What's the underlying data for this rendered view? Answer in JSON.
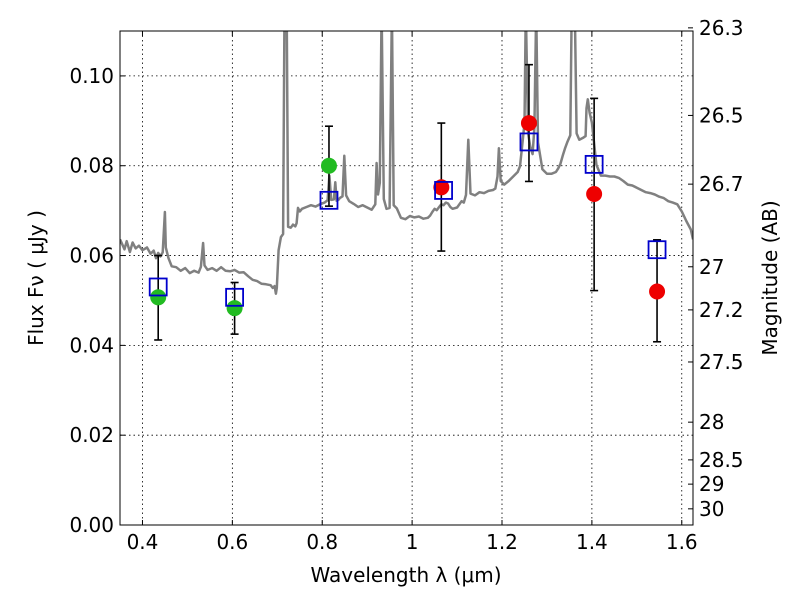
{
  "chart_data": {
    "type": "scatter",
    "title": "",
    "xlabel": "Wavelength  λ (μm)",
    "ylabel": "Flux  Fν  ( μJy )",
    "ylabel_right": "Magnitude (AB)",
    "xlim": [
      0.35,
      1.625
    ],
    "ylim": [
      0.0,
      0.11
    ],
    "grid": true,
    "x_ticks": [
      0.4,
      0.6,
      0.8,
      1.0,
      1.2,
      1.4,
      1.6
    ],
    "x_tick_labels": [
      "0.4",
      "0.6",
      "0.8",
      "1",
      "1.2",
      "1.4",
      "1.6"
    ],
    "y_ticks": [
      0.0,
      0.02,
      0.04,
      0.06,
      0.08,
      0.1
    ],
    "y_tick_labels": [
      "0.00",
      "0.02",
      "0.04",
      "0.06",
      "0.08",
      "0.10"
    ],
    "right_ticks": [
      {
        "label": "26.3",
        "flux": 0.1107
      },
      {
        "label": "26.5",
        "flux": 0.0912
      },
      {
        "label": "26.7",
        "flux": 0.0759
      },
      {
        "label": "27",
        "flux": 0.0575
      },
      {
        "label": "27.2",
        "flux": 0.0479
      },
      {
        "label": "27.5",
        "flux": 0.0363
      },
      {
        "label": "28",
        "flux": 0.0229
      },
      {
        "label": "28.5",
        "flux": 0.0145
      },
      {
        "label": "29",
        "flux": 0.0091
      },
      {
        "label": "30",
        "flux": 0.0036
      }
    ],
    "colors": {
      "model": "#808080",
      "green": "#22bb22",
      "red": "#ee0000",
      "model_box": "#0000cc",
      "error": "#000000"
    },
    "series": [
      {
        "type": "line",
        "points": [
          [
            0.35,
            0.0636
          ],
          [
            0.36,
            0.0614
          ],
          [
            0.365,
            0.0632
          ],
          [
            0.372,
            0.0608
          ],
          [
            0.378,
            0.0629
          ],
          [
            0.385,
            0.0616
          ],
          [
            0.392,
            0.0622
          ],
          [
            0.4,
            0.0612
          ],
          [
            0.41,
            0.0618
          ],
          [
            0.418,
            0.0604
          ],
          [
            0.425,
            0.0611
          ],
          [
            0.43,
            0.0594
          ],
          [
            0.435,
            0.0606
          ],
          [
            0.44,
            0.0598
          ],
          [
            0.445,
            0.0607
          ],
          [
            0.45,
            0.0697
          ],
          [
            0.452,
            0.0618
          ],
          [
            0.458,
            0.0594
          ],
          [
            0.465,
            0.0576
          ],
          [
            0.475,
            0.0574
          ],
          [
            0.485,
            0.0566
          ],
          [
            0.495,
            0.0572
          ],
          [
            0.505,
            0.0561
          ],
          [
            0.515,
            0.0566
          ],
          [
            0.525,
            0.0562
          ],
          [
            0.53,
            0.0575
          ],
          [
            0.535,
            0.0628
          ],
          [
            0.538,
            0.0578
          ],
          [
            0.545,
            0.0568
          ],
          [
            0.555,
            0.0572
          ],
          [
            0.565,
            0.0566
          ],
          [
            0.575,
            0.0574
          ],
          [
            0.585,
            0.0566
          ],
          [
            0.595,
            0.0565
          ],
          [
            0.605,
            0.0568
          ],
          [
            0.615,
            0.0562
          ],
          [
            0.625,
            0.0563
          ],
          [
            0.635,
            0.0554
          ],
          [
            0.645,
            0.0546
          ],
          [
            0.655,
            0.0543
          ],
          [
            0.665,
            0.0537
          ],
          [
            0.675,
            0.0536
          ],
          [
            0.685,
            0.0534
          ],
          [
            0.69,
            0.0528
          ],
          [
            0.694,
            0.0532
          ],
          [
            0.697,
            0.0515
          ],
          [
            0.699,
            0.0528
          ],
          [
            0.703,
            0.0612
          ],
          [
            0.708,
            0.0641
          ],
          [
            0.713,
            0.0648
          ],
          [
            0.716,
            0.115
          ],
          [
            0.721,
            0.115
          ],
          [
            0.724,
            0.0664
          ],
          [
            0.73,
            0.0662
          ],
          [
            0.735,
            0.0669
          ],
          [
            0.74,
            0.0665
          ],
          [
            0.743,
            0.0672
          ],
          [
            0.746,
            0.0706
          ],
          [
            0.75,
            0.0698
          ],
          [
            0.755,
            0.0704
          ],
          [
            0.765,
            0.0708
          ],
          [
            0.775,
            0.0712
          ],
          [
            0.785,
            0.0709
          ],
          [
            0.795,
            0.0714
          ],
          [
            0.805,
            0.0718
          ],
          [
            0.812,
            0.0723
          ],
          [
            0.816,
            0.0778
          ],
          [
            0.82,
            0.0724
          ],
          [
            0.826,
            0.0725
          ],
          [
            0.829,
            0.0763
          ],
          [
            0.832,
            0.0722
          ],
          [
            0.836,
            0.0724
          ],
          [
            0.839,
            0.0728
          ],
          [
            0.845,
            0.0732
          ],
          [
            0.849,
            0.0822
          ],
          [
            0.853,
            0.0734
          ],
          [
            0.86,
            0.0721
          ],
          [
            0.87,
            0.0715
          ],
          [
            0.88,
            0.0708
          ],
          [
            0.89,
            0.0712
          ],
          [
            0.9,
            0.0707
          ],
          [
            0.91,
            0.0702
          ],
          [
            0.918,
            0.0714
          ],
          [
            0.921,
            0.0806
          ],
          [
            0.924,
            0.0736
          ],
          [
            0.928,
            0.0762
          ],
          [
            0.932,
            0.115
          ],
          [
            0.937,
            0.0726
          ],
          [
            0.943,
            0.0704
          ],
          [
            0.95,
            0.0706
          ],
          [
            0.955,
            0.115
          ],
          [
            0.959,
            0.0712
          ],
          [
            0.966,
            0.0705
          ],
          [
            0.975,
            0.0684
          ],
          [
            0.985,
            0.0681
          ],
          [
            0.995,
            0.0688
          ],
          [
            1.005,
            0.0685
          ],
          [
            1.015,
            0.0687
          ],
          [
            1.025,
            0.0682
          ],
          [
            1.035,
            0.0684
          ],
          [
            1.04,
            0.0689
          ],
          [
            1.045,
            0.0697
          ],
          [
            1.05,
            0.0704
          ],
          [
            1.055,
            0.0701
          ],
          [
            1.06,
            0.0708
          ],
          [
            1.065,
            0.0714
          ],
          [
            1.07,
            0.0712
          ],
          [
            1.075,
            0.0718
          ],
          [
            1.08,
            0.0716
          ],
          [
            1.085,
            0.0708
          ],
          [
            1.09,
            0.0704
          ],
          [
            1.1,
            0.0707
          ],
          [
            1.11,
            0.0721
          ],
          [
            1.115,
            0.0718
          ],
          [
            1.12,
            0.0735
          ],
          [
            1.125,
            0.0858
          ],
          [
            1.13,
            0.0738
          ],
          [
            1.14,
            0.0734
          ],
          [
            1.15,
            0.0741
          ],
          [
            1.16,
            0.0739
          ],
          [
            1.17,
            0.0744
          ],
          [
            1.18,
            0.0746
          ],
          [
            1.185,
            0.0749
          ],
          [
            1.19,
            0.0776
          ],
          [
            1.193,
            0.0839
          ],
          [
            1.197,
            0.0766
          ],
          [
            1.205,
            0.0758
          ],
          [
            1.215,
            0.0766
          ],
          [
            1.225,
            0.0776
          ],
          [
            1.235,
            0.0786
          ],
          [
            1.24,
            0.0799
          ],
          [
            1.245,
            0.0845
          ],
          [
            1.25,
            0.0895
          ],
          [
            1.253,
            0.115
          ],
          [
            1.258,
            0.0872
          ],
          [
            1.263,
            0.0842
          ],
          [
            1.268,
            0.0826
          ],
          [
            1.272,
            0.0885
          ],
          [
            1.276,
            0.115
          ],
          [
            1.28,
            0.0852
          ],
          [
            1.29,
            0.0792
          ],
          [
            1.3,
            0.0782
          ],
          [
            1.31,
            0.0782
          ],
          [
            1.32,
            0.0786
          ],
          [
            1.325,
            0.0794
          ],
          [
            1.33,
            0.0804
          ],
          [
            1.335,
            0.0822
          ],
          [
            1.34,
            0.0838
          ],
          [
            1.345,
            0.0852
          ],
          [
            1.352,
            0.0868
          ],
          [
            1.355,
            0.115
          ],
          [
            1.362,
            0.115
          ],
          [
            1.366,
            0.0872
          ],
          [
            1.372,
            0.0858
          ],
          [
            1.38,
            0.0862
          ],
          [
            1.386,
            0.0866
          ],
          [
            1.388,
            0.0928
          ],
          [
            1.391,
            0.0948
          ],
          [
            1.395,
            0.0918
          ],
          [
            1.4,
            0.0896
          ],
          [
            1.41,
            0.0802
          ],
          [
            1.42,
            0.0778
          ],
          [
            1.43,
            0.0778
          ],
          [
            1.44,
            0.0776
          ],
          [
            1.45,
            0.0776
          ],
          [
            1.46,
            0.0773
          ],
          [
            1.47,
            0.0766
          ],
          [
            1.48,
            0.0758
          ],
          [
            1.49,
            0.0756
          ],
          [
            1.5,
            0.0751
          ],
          [
            1.51,
            0.0746
          ],
          [
            1.52,
            0.0741
          ],
          [
            1.53,
            0.0739
          ],
          [
            1.54,
            0.0736
          ],
          [
            1.55,
            0.0731
          ],
          [
            1.56,
            0.0728
          ],
          [
            1.57,
            0.0721
          ],
          [
            1.58,
            0.0718
          ],
          [
            1.59,
            0.0714
          ],
          [
            1.6,
            0.0698
          ],
          [
            1.61,
            0.0677
          ],
          [
            1.62,
            0.0658
          ],
          [
            1.625,
            0.0636
          ]
        ]
      },
      {
        "type": "scatter-errorbar",
        "marker": "circle",
        "color_key": "green",
        "points": [
          {
            "x": 0.435,
            "y": 0.0507,
            "yerr": [
              0.0412,
              0.06
            ]
          },
          {
            "x": 0.605,
            "y": 0.0483,
            "yerr": [
              0.0425,
              0.054
            ]
          },
          {
            "x": 0.815,
            "y": 0.08,
            "yerr": [
              0.071,
              0.0888
            ]
          }
        ]
      },
      {
        "type": "scatter-errorbar",
        "marker": "circle",
        "color_key": "red",
        "points": [
          {
            "x": 1.065,
            "y": 0.0752,
            "yerr": [
              0.061,
              0.0895
            ]
          },
          {
            "x": 1.26,
            "y": 0.0895,
            "yerr": [
              0.0765,
              0.1025
            ]
          },
          {
            "x": 1.405,
            "y": 0.0737,
            "yerr": [
              0.0522,
              0.095
            ]
          },
          {
            "x": 1.545,
            "y": 0.052,
            "yerr": [
              0.0408,
              0.0635
            ]
          }
        ]
      },
      {
        "type": "scatter",
        "marker": "square-open",
        "color_key": "model_box",
        "points": [
          {
            "x": 0.435,
            "y": 0.053
          },
          {
            "x": 0.605,
            "y": 0.0507
          },
          {
            "x": 0.815,
            "y": 0.0723
          },
          {
            "x": 1.07,
            "y": 0.0745
          },
          {
            "x": 1.26,
            "y": 0.0853
          },
          {
            "x": 1.405,
            "y": 0.0803
          },
          {
            "x": 1.545,
            "y": 0.0613
          }
        ]
      }
    ]
  }
}
